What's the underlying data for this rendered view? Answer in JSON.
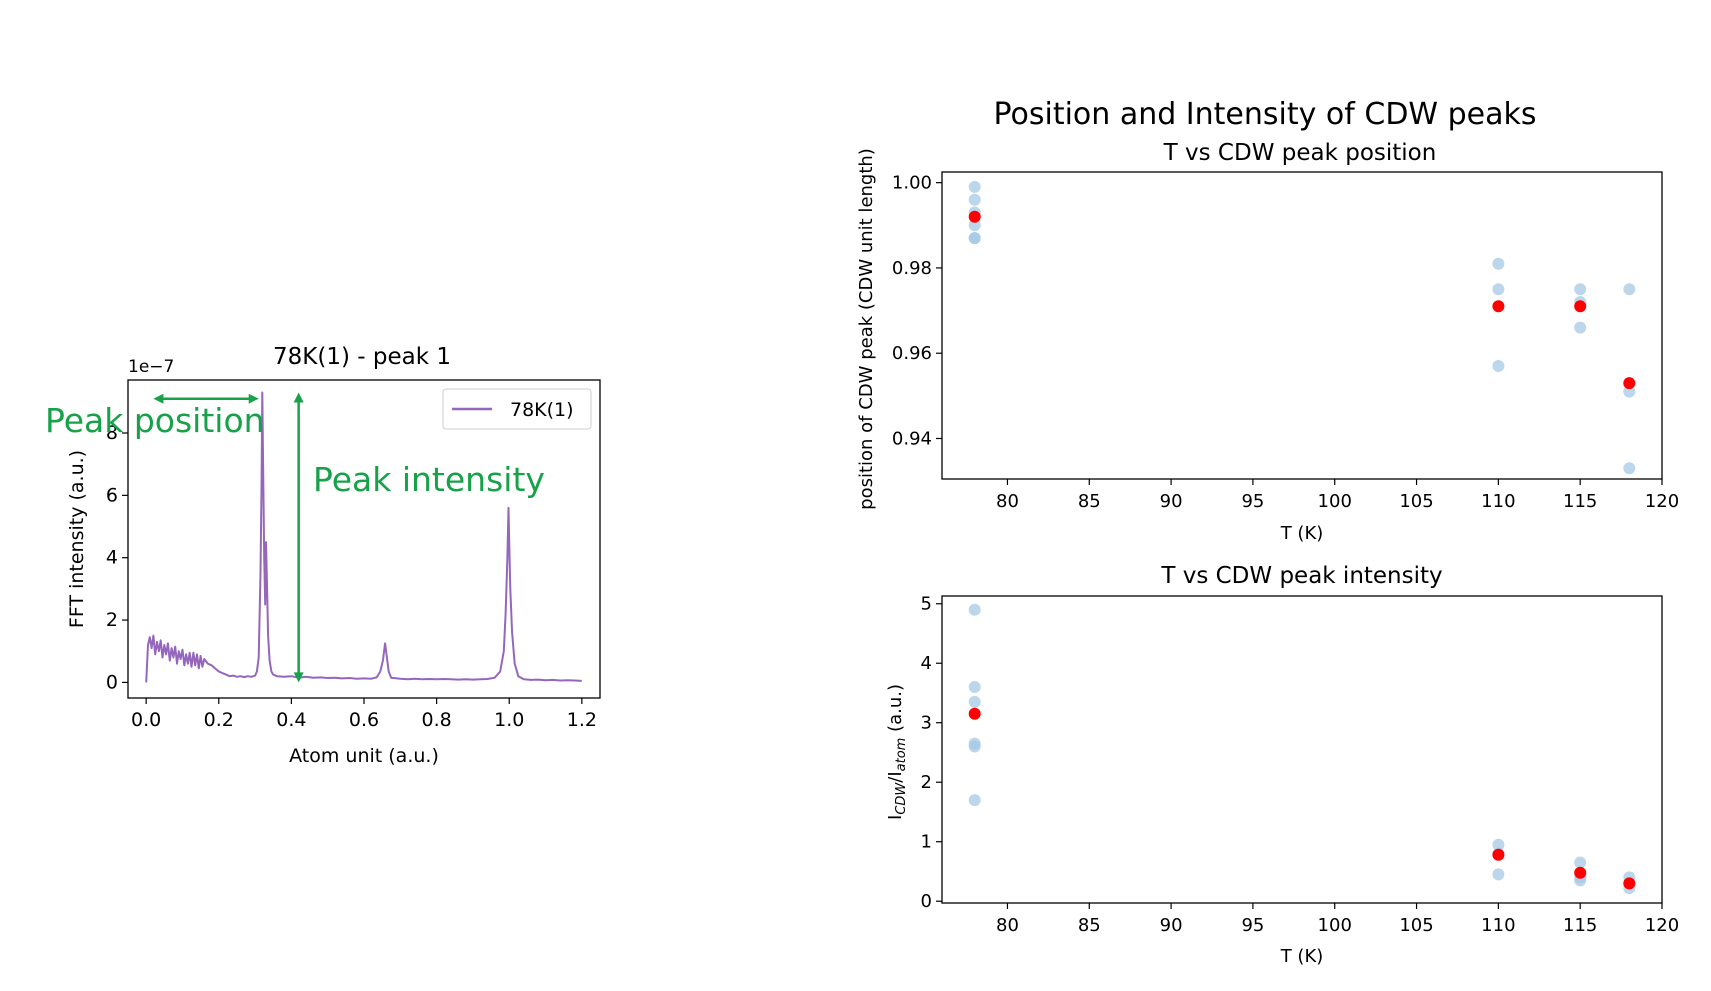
{
  "figure": {
    "annotation_color": "#17a24a"
  },
  "chart_data": [
    {
      "type": "line",
      "title": "78K(1) - peak 1",
      "xlabel": "Atom unit (a.u.)",
      "ylabel": "FFT intensity (a.u.)",
      "offset_label": "1e−7",
      "xlim": [
        -0.05,
        1.25
      ],
      "ylim": [
        -0.5,
        9.7
      ],
      "xticks": [
        0.0,
        0.2,
        0.4,
        0.6,
        0.8,
        1.0,
        1.2
      ],
      "xtick_labels": [
        "0.0",
        "0.2",
        "0.4",
        "0.6",
        "0.8",
        "1.0",
        "1.2"
      ],
      "yticks": [
        0,
        2,
        4,
        6,
        8
      ],
      "ytick_labels": [
        "0",
        "2",
        "4",
        "6",
        "8"
      ],
      "legend": {
        "placement": "top-right",
        "entries": [
          "78K(1)"
        ]
      },
      "grid": false,
      "series": [
        {
          "name": "78K(1)",
          "color": "#9467bd",
          "points": [
            [
              0.0,
              0.0
            ],
            [
              0.005,
              1.2
            ],
            [
              0.01,
              1.45
            ],
            [
              0.015,
              1.1
            ],
            [
              0.02,
              1.5
            ],
            [
              0.025,
              0.9
            ],
            [
              0.03,
              1.3
            ],
            [
              0.035,
              1.0
            ],
            [
              0.04,
              1.35
            ],
            [
              0.045,
              0.8
            ],
            [
              0.05,
              1.2
            ],
            [
              0.055,
              0.9
            ],
            [
              0.06,
              1.25
            ],
            [
              0.065,
              0.7
            ],
            [
              0.07,
              1.1
            ],
            [
              0.075,
              0.8
            ],
            [
              0.08,
              1.15
            ],
            [
              0.085,
              0.6
            ],
            [
              0.09,
              1.0
            ],
            [
              0.095,
              0.75
            ],
            [
              0.1,
              1.05
            ],
            [
              0.105,
              0.55
            ],
            [
              0.11,
              0.9
            ],
            [
              0.115,
              0.6
            ],
            [
              0.12,
              0.95
            ],
            [
              0.125,
              0.5
            ],
            [
              0.13,
              0.95
            ],
            [
              0.135,
              0.55
            ],
            [
              0.14,
              0.9
            ],
            [
              0.145,
              0.45
            ],
            [
              0.15,
              0.85
            ],
            [
              0.155,
              0.5
            ],
            [
              0.16,
              0.75
            ],
            [
              0.17,
              0.6
            ],
            [
              0.18,
              0.55
            ],
            [
              0.19,
              0.45
            ],
            [
              0.2,
              0.35
            ],
            [
              0.21,
              0.3
            ],
            [
              0.22,
              0.25
            ],
            [
              0.23,
              0.2
            ],
            [
              0.24,
              0.22
            ],
            [
              0.25,
              0.18
            ],
            [
              0.26,
              0.2
            ],
            [
              0.27,
              0.17
            ],
            [
              0.28,
              0.2
            ],
            [
              0.29,
              0.18
            ],
            [
              0.3,
              0.22
            ],
            [
              0.305,
              0.35
            ],
            [
              0.31,
              0.8
            ],
            [
              0.315,
              3.5
            ],
            [
              0.318,
              6.5
            ],
            [
              0.32,
              9.3
            ],
            [
              0.322,
              7.0
            ],
            [
              0.325,
              4.0
            ],
            [
              0.328,
              2.5
            ],
            [
              0.33,
              4.5
            ],
            [
              0.333,
              3.0
            ],
            [
              0.336,
              1.5
            ],
            [
              0.34,
              0.7
            ],
            [
              0.345,
              0.35
            ],
            [
              0.35,
              0.25
            ],
            [
              0.36,
              0.2
            ],
            [
              0.38,
              0.18
            ],
            [
              0.4,
              0.2
            ],
            [
              0.42,
              0.15
            ],
            [
              0.44,
              0.18
            ],
            [
              0.46,
              0.15
            ],
            [
              0.48,
              0.16
            ],
            [
              0.5,
              0.14
            ],
            [
              0.52,
              0.15
            ],
            [
              0.54,
              0.13
            ],
            [
              0.56,
              0.14
            ],
            [
              0.58,
              0.12
            ],
            [
              0.6,
              0.13
            ],
            [
              0.62,
              0.12
            ],
            [
              0.635,
              0.16
            ],
            [
              0.645,
              0.35
            ],
            [
              0.652,
              0.7
            ],
            [
              0.658,
              1.25
            ],
            [
              0.663,
              0.8
            ],
            [
              0.668,
              0.35
            ],
            [
              0.675,
              0.15
            ],
            [
              0.7,
              0.12
            ],
            [
              0.72,
              0.1
            ],
            [
              0.74,
              0.12
            ],
            [
              0.76,
              0.1
            ],
            [
              0.78,
              0.11
            ],
            [
              0.8,
              0.1
            ],
            [
              0.82,
              0.11
            ],
            [
              0.84,
              0.1
            ],
            [
              0.86,
              0.09
            ],
            [
              0.88,
              0.1
            ],
            [
              0.9,
              0.09
            ],
            [
              0.92,
              0.1
            ],
            [
              0.94,
              0.11
            ],
            [
              0.96,
              0.15
            ],
            [
              0.975,
              0.35
            ],
            [
              0.985,
              1.0
            ],
            [
              0.99,
              2.2
            ],
            [
              0.995,
              4.0
            ],
            [
              0.998,
              5.6
            ],
            [
              1.0,
              4.5
            ],
            [
              1.003,
              3.0
            ],
            [
              1.008,
              1.6
            ],
            [
              1.015,
              0.6
            ],
            [
              1.025,
              0.2
            ],
            [
              1.04,
              0.1
            ],
            [
              1.06,
              0.08
            ],
            [
              1.08,
              0.09
            ],
            [
              1.1,
              0.07
            ],
            [
              1.12,
              0.08
            ],
            [
              1.14,
              0.06
            ],
            [
              1.16,
              0.07
            ],
            [
              1.18,
              0.06
            ],
            [
              1.2,
              0.05
            ]
          ]
        }
      ],
      "annotations": [
        {
          "text": "Peak position",
          "type": "horizontal-double-arrow",
          "from": [
            0.02,
            9.1
          ],
          "to": [
            0.31,
            9.1
          ]
        },
        {
          "text": "Peak intensity",
          "type": "vertical-double-arrow",
          "from": [
            0.42,
            0.0
          ],
          "to": [
            0.42,
            9.3
          ]
        }
      ]
    },
    {
      "type": "scatter",
      "suptitle": "Position and Intensity of CDW peaks",
      "title": "T vs CDW peak position",
      "xlabel": "T (K)",
      "ylabel": "position of CDW peak (CDW unit length)",
      "xlim": [
        76,
        120
      ],
      "ylim": [
        0.9305,
        1.0025
      ],
      "xticks": [
        80,
        85,
        90,
        95,
        100,
        105,
        110,
        115,
        120
      ],
      "xtick_labels": [
        "80",
        "85",
        "90",
        "95",
        "100",
        "105",
        "110",
        "115",
        "120"
      ],
      "yticks": [
        0.94,
        0.96,
        0.98,
        1.0
      ],
      "ytick_labels": [
        "0.94",
        "0.96",
        "0.98",
        "1.00"
      ],
      "grid": false,
      "series": [
        {
          "color": "#a6c8e4",
          "x": [
            78,
            78,
            78,
            78,
            78,
            78,
            110,
            110,
            110,
            115,
            115,
            115,
            118,
            118,
            118
          ],
          "y": [
            0.999,
            0.996,
            0.993,
            0.99,
            0.987,
            0.987,
            0.981,
            0.975,
            0.957,
            0.975,
            0.972,
            0.966,
            0.975,
            0.951,
            0.933
          ]
        },
        {
          "color": "#ff0000",
          "x": [
            78,
            110,
            115,
            118
          ],
          "y": [
            0.992,
            0.971,
            0.971,
            0.953
          ]
        }
      ]
    },
    {
      "type": "scatter",
      "title": "T vs CDW peak intensity",
      "xlabel": "T (K)",
      "ylabel_main": "I",
      "ylabel_sub1": "CDW",
      "ylabel_mid": "/I",
      "ylabel_sub2": "atom",
      "ylabel_tail": " (a.u.)",
      "xlim": [
        76,
        120
      ],
      "ylim": [
        -0.03,
        5.13
      ],
      "xticks": [
        80,
        85,
        90,
        95,
        100,
        105,
        110,
        115,
        120
      ],
      "xtick_labels": [
        "80",
        "85",
        "90",
        "95",
        "100",
        "105",
        "110",
        "115",
        "120"
      ],
      "yticks": [
        0,
        1,
        2,
        3,
        4,
        5
      ],
      "ytick_labels": [
        "0",
        "1",
        "2",
        "3",
        "4",
        "5"
      ],
      "grid": false,
      "series": [
        {
          "color": "#a6c8e4",
          "x": [
            78,
            78,
            78,
            78,
            78,
            78,
            110,
            110,
            110,
            115,
            115,
            115,
            118,
            118,
            118
          ],
          "y": [
            4.9,
            3.6,
            3.35,
            2.65,
            2.6,
            1.7,
            0.95,
            0.8,
            0.45,
            0.65,
            0.4,
            0.35,
            0.4,
            0.3,
            0.22
          ]
        },
        {
          "color": "#ff0000",
          "x": [
            78,
            110,
            115,
            118
          ],
          "y": [
            3.15,
            0.78,
            0.48,
            0.3
          ]
        }
      ]
    }
  ]
}
